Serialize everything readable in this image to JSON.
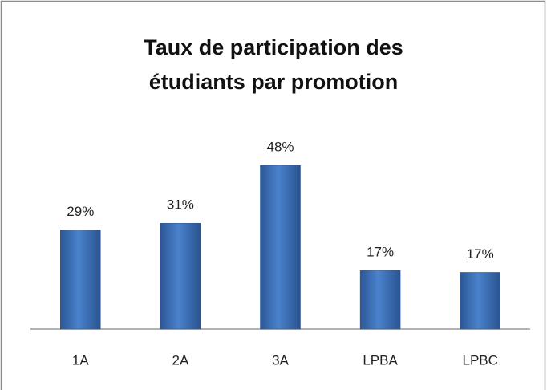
{
  "chart_data": {
    "type": "bar",
    "title": "Taux de participation des étudiants par promotion",
    "categories": [
      "1A",
      "2A",
      "3A",
      "LPBA",
      "LPBC"
    ],
    "values": [
      29,
      31,
      48,
      17.2,
      16.6
    ],
    "value_labels": [
      "29%",
      "31%",
      "48%",
      "17%",
      "17%"
    ],
    "color": "#3a6db5",
    "ylim": [
      0,
      60
    ]
  }
}
